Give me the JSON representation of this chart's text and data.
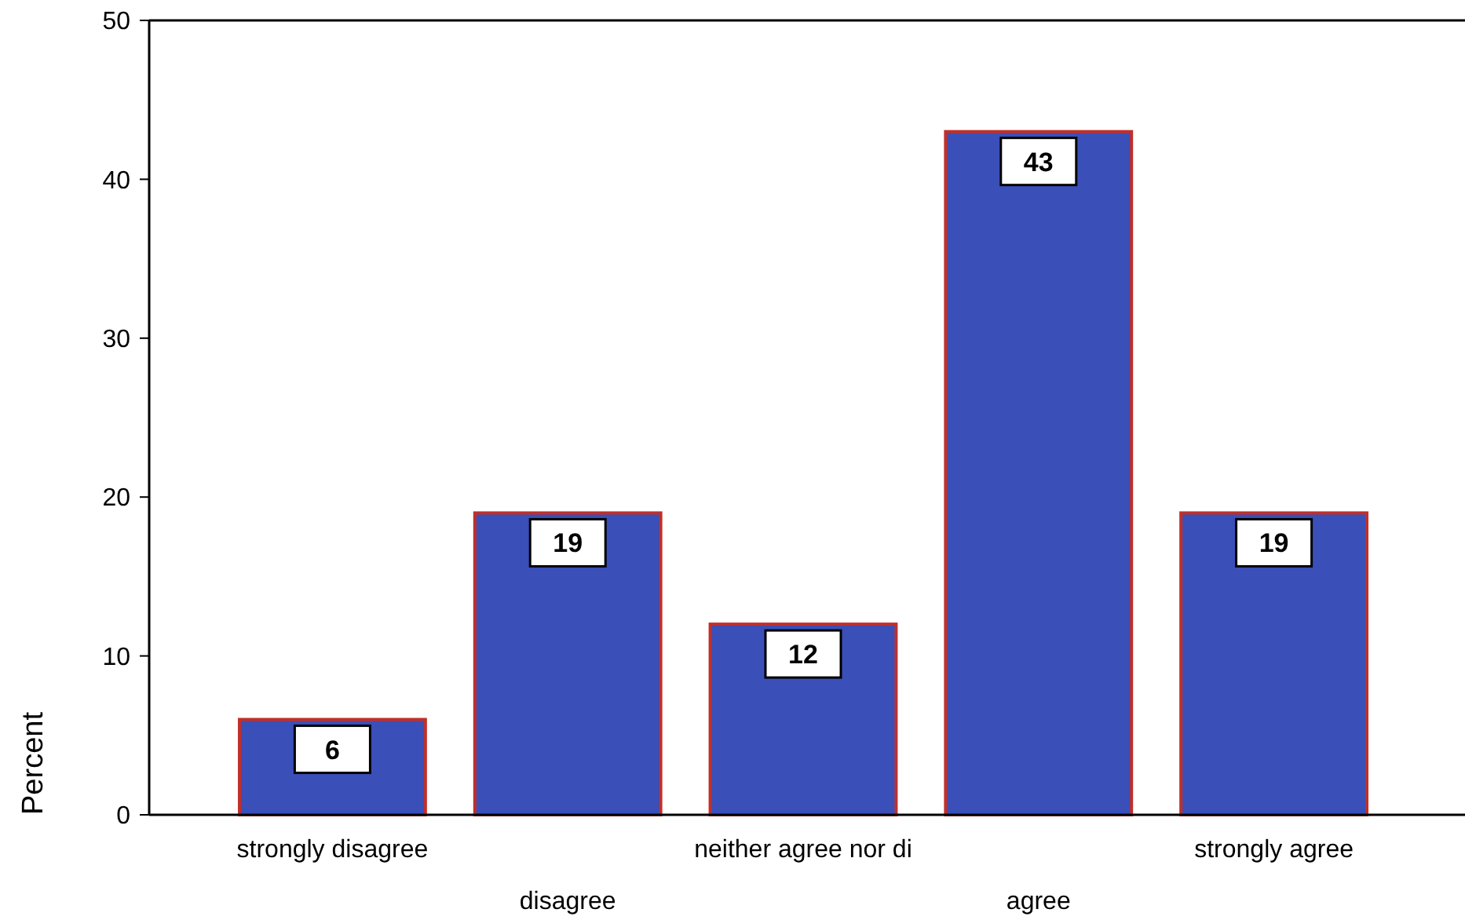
{
  "chart_data": {
    "type": "bar",
    "ylabel": "Percent",
    "categories": [
      "strongly disagree",
      "disagree",
      "neither agree nor di",
      "agree",
      "strongly agree"
    ],
    "values": [
      6,
      19,
      12,
      43,
      19
    ],
    "color": "#3b4fb8",
    "ylim": [
      0,
      50
    ],
    "yticks": [
      0,
      10,
      20,
      30,
      40,
      50
    ],
    "data_labels": true
  }
}
